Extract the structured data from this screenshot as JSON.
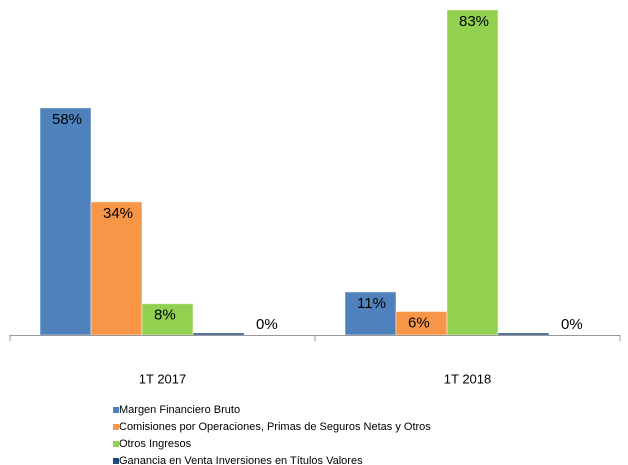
{
  "chart_data": {
    "type": "bar",
    "categories": [
      "1T 2017",
      "1T 2018"
    ],
    "series": [
      {
        "name": "Margen Financiero Bruto",
        "color": "#4f81bd",
        "values": [
          58,
          11
        ],
        "value_labels": [
          "58%",
          "11%"
        ]
      },
      {
        "name": "Comisiones por Operaciones, Primas de Seguros Netas y Otros",
        "color": "#f79646",
        "values": [
          34,
          6
        ],
        "value_labels": [
          "34%",
          "6%"
        ]
      },
      {
        "name": "Otros Ingresos",
        "color": "#92d050",
        "values": [
          8,
          83
        ],
        "value_labels": [
          "8%",
          "83%"
        ]
      },
      {
        "name": "Ganancia en Venta Inversiones en Títulos Valores",
        "color": "#1f497d",
        "values": [
          0,
          0
        ],
        "value_labels": [
          "0%",
          "0%"
        ]
      }
    ],
    "ylim": [
      0,
      83
    ]
  }
}
